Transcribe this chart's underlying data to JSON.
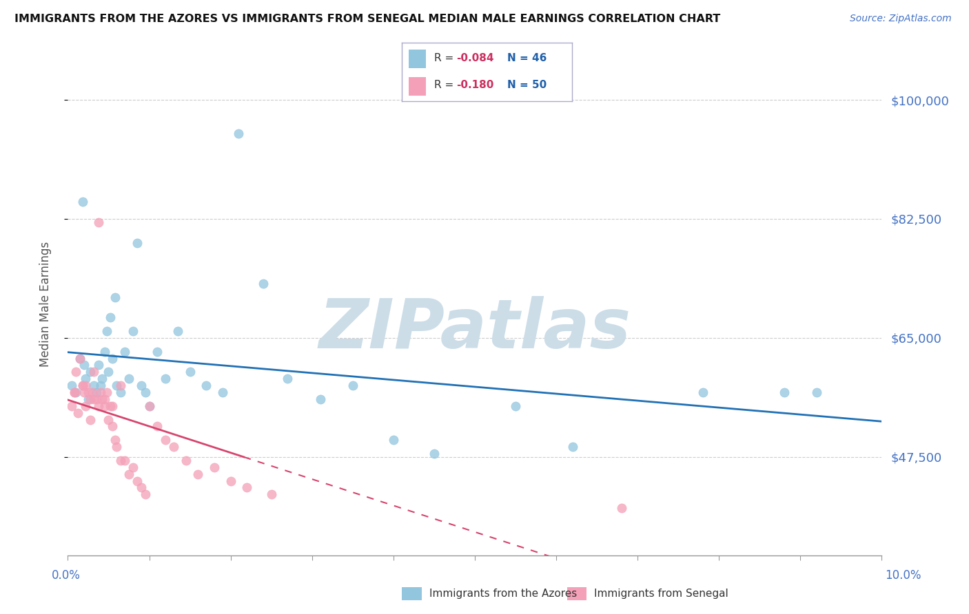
{
  "title": "IMMIGRANTS FROM THE AZORES VS IMMIGRANTS FROM SENEGAL MEDIAN MALE EARNINGS CORRELATION CHART",
  "source_text": "Source: ZipAtlas.com",
  "ylabel": "Median Male Earnings",
  "y_ticks": [
    47500,
    65000,
    82500,
    100000
  ],
  "y_tick_labels": [
    "$47,500",
    "$65,000",
    "$82,500",
    "$100,000"
  ],
  "x_min": 0.0,
  "x_max": 10.0,
  "y_min": 33000,
  "y_max": 107000,
  "legend_r1": "-0.084",
  "legend_n1": "46",
  "legend_r2": "-0.180",
  "legend_n2": "50",
  "legend_label1": "Immigrants from the Azores",
  "legend_label2": "Immigrants from Senegal",
  "color_blue": "#92c5de",
  "color_pink": "#f4a0b8",
  "color_blue_line": "#2171b5",
  "color_pink_line": "#d6456e",
  "color_blue_dark": "#2060aa",
  "color_pink_dark": "#cc3060",
  "color_axis": "#4472c4",
  "watermark": "ZIPatlas",
  "watermark_color": "#ccdde8",
  "azores_x": [
    0.05,
    0.1,
    0.15,
    0.2,
    0.22,
    0.25,
    0.28,
    0.32,
    0.35,
    0.38,
    0.4,
    0.42,
    0.45,
    0.48,
    0.5,
    0.52,
    0.55,
    0.58,
    0.6,
    0.65,
    0.7,
    0.75,
    0.8,
    0.85,
    0.9,
    0.95,
    1.0,
    1.1,
    1.2,
    1.35,
    1.5,
    1.7,
    1.9,
    2.1,
    2.4,
    2.7,
    3.1,
    3.5,
    4.0,
    4.5,
    5.5,
    6.2,
    7.8,
    8.8,
    9.2,
    0.18
  ],
  "azores_y": [
    58000,
    57000,
    62000,
    61000,
    59000,
    56000,
    60000,
    58000,
    57000,
    61000,
    58000,
    59000,
    63000,
    66000,
    60000,
    68000,
    62000,
    71000,
    58000,
    57000,
    63000,
    59000,
    66000,
    79000,
    58000,
    57000,
    55000,
    63000,
    59000,
    66000,
    60000,
    58000,
    57000,
    95000,
    73000,
    59000,
    56000,
    58000,
    50000,
    48000,
    55000,
    49000,
    57000,
    57000,
    57000,
    85000
  ],
  "senegal_x": [
    0.05,
    0.08,
    0.1,
    0.12,
    0.15,
    0.18,
    0.2,
    0.22,
    0.25,
    0.28,
    0.3,
    0.32,
    0.35,
    0.38,
    0.4,
    0.42,
    0.45,
    0.48,
    0.5,
    0.52,
    0.55,
    0.58,
    0.6,
    0.65,
    0.7,
    0.75,
    0.8,
    0.85,
    0.9,
    0.95,
    1.0,
    1.1,
    1.2,
    1.3,
    1.45,
    1.6,
    1.8,
    2.0,
    2.2,
    2.5,
    0.22,
    0.32,
    0.38,
    0.45,
    0.55,
    0.65,
    0.18,
    0.28,
    0.08,
    6.8
  ],
  "senegal_y": [
    55000,
    57000,
    60000,
    54000,
    62000,
    58000,
    57000,
    55000,
    57000,
    53000,
    57000,
    60000,
    56000,
    55000,
    57000,
    56000,
    55000,
    57000,
    53000,
    55000,
    52000,
    50000,
    49000,
    47000,
    47000,
    45000,
    46000,
    44000,
    43000,
    42000,
    55000,
    52000,
    50000,
    49000,
    47000,
    45000,
    46000,
    44000,
    43000,
    42000,
    58000,
    56000,
    82000,
    56000,
    55000,
    58000,
    58000,
    56000,
    57000,
    40000
  ],
  "line1_x0": 0.0,
  "line1_y0": 60500,
  "line1_x1": 10.0,
  "line1_y1": 55000,
  "line2_x0": 0.0,
  "line2_y0": 56000,
  "line2_x1": 5.5,
  "line2_y1": 44000,
  "line2_dash_x0": 5.5,
  "line2_dash_x1": 10.0
}
